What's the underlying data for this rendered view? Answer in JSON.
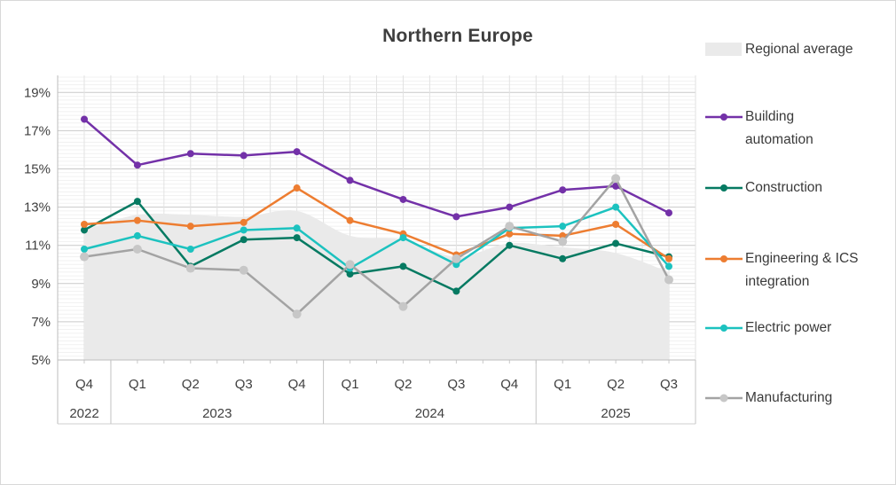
{
  "title": "Northern Europe",
  "colors": {
    "background": "#ffffff",
    "frame_border": "#d8d8d8",
    "grid_minor": "#f1f1f1",
    "grid_major": "#c9c9c9",
    "grid_vertical": "#e2e2e2",
    "axis_line": "#bdbdbd",
    "axis_text": "#404040",
    "legend_text": "#3a3a3a",
    "title_text": "#3e3e3e"
  },
  "chart_data": {
    "type": "line",
    "title": "Northern Europe",
    "categories": [
      "Q4",
      "Q1",
      "Q2",
      "Q3",
      "Q4",
      "Q1",
      "Q2",
      "Q3",
      "Q4",
      "Q1",
      "Q2",
      "Q3"
    ],
    "year_groups": [
      {
        "label": "2022",
        "count": 1
      },
      {
        "label": "2023",
        "count": 4
      },
      {
        "label": "2024",
        "count": 4
      },
      {
        "label": "2025",
        "count": 3
      }
    ],
    "y_ticks": [
      "19%",
      "17%",
      "15%",
      "13%",
      "11%",
      "9%",
      "7%",
      "5%"
    ],
    "ylim": [
      5,
      20
    ],
    "y_major_step": 2,
    "y_minor_step": 0.2,
    "grid": "on",
    "legend_position": "right",
    "area_series": {
      "name": "Regional average",
      "color": "#eaeaea",
      "values": [
        11.8,
        12.6,
        12.6,
        12.5,
        12.8,
        11.5,
        11.3,
        10.4,
        11.1,
        10.9,
        10.6,
        9.6
      ]
    },
    "series": [
      {
        "name": "Building automation",
        "color": "#7331a8",
        "marker": "#7331a8",
        "marker_r": 4,
        "values": [
          17.6,
          15.2,
          15.8,
          15.7,
          15.9,
          14.4,
          13.4,
          12.5,
          13.0,
          13.9,
          14.1,
          12.7
        ]
      },
      {
        "name": "Construction",
        "color": "#067a62",
        "marker": "#067a62",
        "marker_r": 4,
        "values": [
          11.8,
          13.3,
          9.9,
          11.3,
          11.4,
          9.5,
          9.9,
          8.6,
          11.0,
          10.3,
          11.1,
          10.4
        ]
      },
      {
        "name": "Engineering & ICS integration",
        "color": "#ed7d31",
        "marker": "#ed7d31",
        "marker_r": 4,
        "values": [
          12.1,
          12.3,
          12.0,
          12.2,
          14.0,
          12.3,
          11.6,
          10.5,
          11.6,
          11.5,
          12.1,
          10.3
        ]
      },
      {
        "name": "Electric power",
        "color": "#1cc2bf",
        "marker": "#1cc2bf",
        "marker_r": 4,
        "values": [
          10.8,
          11.5,
          10.8,
          11.8,
          11.9,
          9.8,
          11.4,
          10.0,
          11.9,
          12.0,
          13.0,
          9.9
        ]
      },
      {
        "name": "Manufacturing",
        "color": "#a3a3a3",
        "marker": "#c7c7c7",
        "marker_r": 5,
        "values": [
          10.4,
          10.8,
          9.8,
          9.7,
          7.4,
          10.0,
          7.8,
          10.3,
          12.0,
          11.2,
          14.5,
          9.2
        ]
      }
    ]
  },
  "legend": {
    "items": [
      "Regional average",
      "Building automation",
      "Construction",
      "Engineering & ICS integration",
      "Electric power",
      "Manufacturing"
    ]
  }
}
